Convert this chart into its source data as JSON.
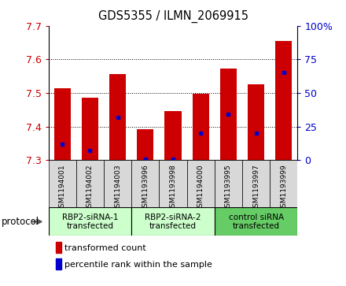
{
  "title": "GDS5355 / ILMN_2069915",
  "samples": [
    "GSM1194001",
    "GSM1194002",
    "GSM1194003",
    "GSM1193996",
    "GSM1193998",
    "GSM1194000",
    "GSM1193995",
    "GSM1193997",
    "GSM1193999"
  ],
  "transformed_counts": [
    7.515,
    7.487,
    7.557,
    7.393,
    7.447,
    7.498,
    7.572,
    7.525,
    7.655
  ],
  "percentile_ranks": [
    12,
    7,
    32,
    1,
    1,
    20,
    34,
    20,
    65
  ],
  "ylim_left": [
    7.3,
    7.7
  ],
  "ylim_right": [
    0,
    100
  ],
  "yticks_left": [
    7.3,
    7.4,
    7.5,
    7.6,
    7.7
  ],
  "yticks_right": [
    0,
    25,
    50,
    75,
    100
  ],
  "ytick_labels_right": [
    "0",
    "25",
    "50",
    "75",
    "100%"
  ],
  "bar_color": "#cc0000",
  "dot_color": "#0000cc",
  "bar_bottom": 7.3,
  "groups": [
    {
      "label": "RBP2-siRNA-1\ntransfected",
      "indices": [
        0,
        1,
        2
      ],
      "color": "#ccffcc"
    },
    {
      "label": "RBP2-siRNA-2\ntransfected",
      "indices": [
        3,
        4,
        5
      ],
      "color": "#ccffcc"
    },
    {
      "label": "control siRNA\ntransfected",
      "indices": [
        6,
        7,
        8
      ],
      "color": "#66cc66"
    }
  ],
  "protocol_label": "protocol",
  "legend_red_label": "transformed count",
  "legend_blue_label": "percentile rank within the sample",
  "left_tick_color": "#cc0000",
  "right_tick_color": "#0000cc",
  "background_color": "#ffffff",
  "panel_color": "#d8d8d8"
}
